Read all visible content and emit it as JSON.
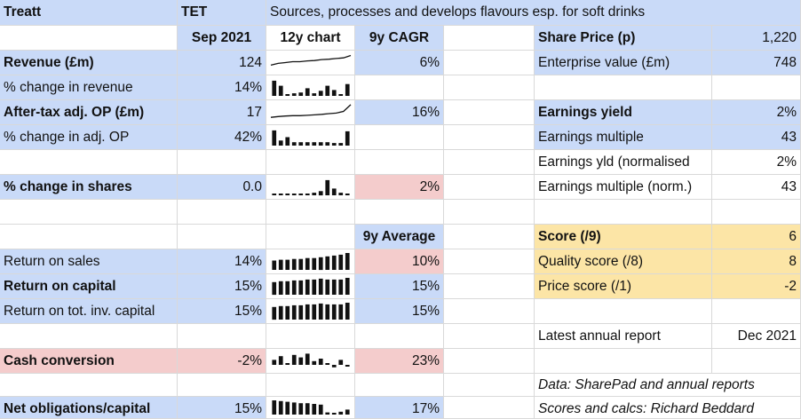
{
  "header": {
    "company": "Treatt",
    "ticker": "TET",
    "description": "Sources, processes and develops flavours esp. for soft drinks"
  },
  "columns": {
    "period": "Sep 2021",
    "chart": "12y chart",
    "cagr": "9y CAGR",
    "average": "9y Average"
  },
  "metrics": {
    "revenue": {
      "label": "Revenue (£m)",
      "value": "124",
      "cagr": "6%"
    },
    "revenue_change": {
      "label": "% change in revenue",
      "value": "14%"
    },
    "op": {
      "label": "After-tax adj. OP (£m)",
      "value": "17",
      "cagr": "16%"
    },
    "op_change": {
      "label": "% change in adj. OP",
      "value": "42%"
    },
    "shares_change": {
      "label": "% change in shares",
      "value": "0.0",
      "cagr": "2%"
    },
    "ros": {
      "label": "Return on sales",
      "value": "14%",
      "avg": "10%"
    },
    "roc": {
      "label": "Return on capital",
      "value": "15%",
      "avg": "15%"
    },
    "rotic": {
      "label": "Return on tot. inv. capital",
      "value": "15%",
      "avg": "15%"
    },
    "cash_conv": {
      "label": "Cash conversion",
      "value": "-2%",
      "avg": "23%"
    },
    "net_obl": {
      "label": "Net obligations/capital",
      "value": "15%",
      "avg": "17%"
    }
  },
  "valuation": {
    "share_price": {
      "label": "Share Price (p)",
      "value": "1,220"
    },
    "ev": {
      "label": "Enterprise value (£m)",
      "value": "748"
    },
    "earnings_yield": {
      "label": "Earnings yield",
      "value": "2%"
    },
    "earnings_multiple": {
      "label": "Earnings multiple",
      "value": "43"
    },
    "earnings_yield_norm": {
      "label": "Earnings yld (normalised",
      "value": "2%"
    },
    "earnings_multiple_norm": {
      "label": "Earnings multiple (norm.)",
      "value": "43"
    }
  },
  "scores": {
    "score": {
      "label": "Score (/9)",
      "value": "6"
    },
    "quality": {
      "label": "Quality score (/8)",
      "value": "8"
    },
    "price": {
      "label": "Price score (/1)",
      "value": "-2"
    }
  },
  "report": {
    "label": "Latest annual report",
    "value": "Dec 2021"
  },
  "notes": {
    "data_source": "Data: SharePad and annual reports",
    "scores_calcs": "Scores and calcs: Richard Beddard"
  },
  "sparklines": {
    "revenue": [
      0.35,
      0.45,
      0.5,
      0.55,
      0.55,
      0.6,
      0.62,
      0.68,
      0.7,
      0.74,
      0.78,
      0.92
    ],
    "revenue_change": [
      0.9,
      0.6,
      0.1,
      0.15,
      0.2,
      0.45,
      0.15,
      0.3,
      0.6,
      0.35,
      0.1,
      0.7
    ],
    "op": [
      0.2,
      0.25,
      0.28,
      0.3,
      0.3,
      0.32,
      0.35,
      0.38,
      0.42,
      0.45,
      0.55,
      0.95
    ],
    "op_change": [
      0.9,
      0.3,
      0.5,
      0.2,
      0.2,
      0.2,
      0.2,
      0.2,
      0.2,
      0.15,
      0.15,
      0.85
    ],
    "shares_change": [
      0.05,
      0.05,
      0.05,
      0.1,
      0.1,
      0.1,
      0.15,
      0.25,
      0.9,
      0.4,
      0.15,
      0.1
    ],
    "ros": [
      0.55,
      0.6,
      0.6,
      0.65,
      0.65,
      0.7,
      0.7,
      0.75,
      0.8,
      0.85,
      0.9,
      1.0
    ],
    "roc": [
      0.75,
      0.8,
      0.8,
      0.85,
      0.85,
      0.9,
      0.9,
      0.95,
      0.9,
      0.9,
      0.9,
      1.0
    ],
    "rotic": [
      0.75,
      0.8,
      0.8,
      0.85,
      0.85,
      0.9,
      0.9,
      0.95,
      0.9,
      0.9,
      0.9,
      1.0
    ],
    "cash_conv": [
      0.4,
      0.7,
      0.1,
      0.8,
      0.6,
      0.9,
      0.3,
      0.5,
      0.1,
      -0.2,
      0.4,
      -0.1
    ],
    "net_obl": [
      1.0,
      0.95,
      0.9,
      0.85,
      0.8,
      0.8,
      0.75,
      0.7,
      0.15,
      0.1,
      0.2,
      0.35
    ]
  }
}
